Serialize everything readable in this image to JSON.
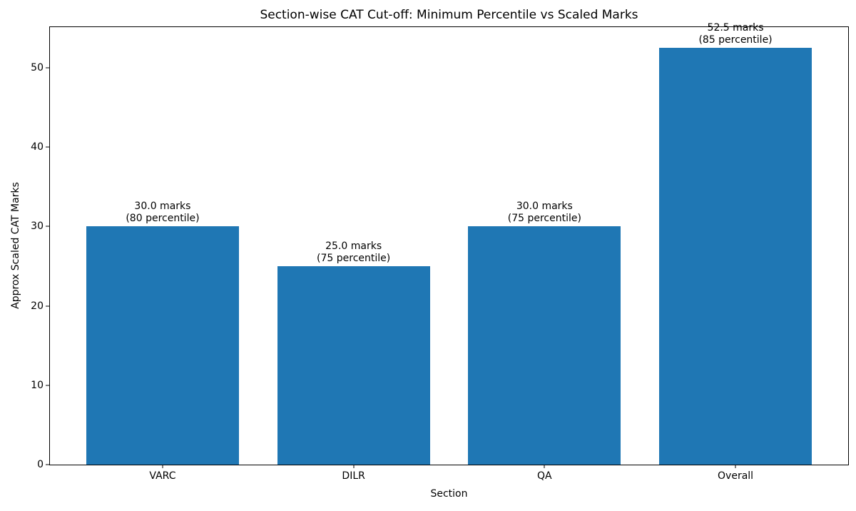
{
  "chart_data": {
    "type": "bar",
    "title": "Section-wise CAT Cut-off: Minimum Percentile vs Scaled Marks",
    "xlabel": "Section",
    "ylabel": "Approx Scaled CAT Marks",
    "categories": [
      "VARC",
      "DILR",
      "QA",
      "Overall"
    ],
    "values": [
      30.0,
      25.0,
      30.0,
      52.5
    ],
    "percentiles": [
      80,
      75,
      75,
      85
    ],
    "bar_labels": [
      "30.0 marks\n(80 percentile)",
      "25.0 marks\n(75 percentile)",
      "30.0 marks\n(75 percentile)",
      "52.5 marks\n(85 percentile)"
    ],
    "yticks": [
      0,
      10,
      20,
      30,
      40,
      50
    ],
    "ylim": [
      0,
      55.125
    ],
    "xlim_units": [
      -0.59,
      3.59
    ],
    "bar_width_units": 0.8,
    "bar_color": "#1f77b4",
    "axis_color": "#000000",
    "grid": false,
    "legend_position": "none"
  }
}
